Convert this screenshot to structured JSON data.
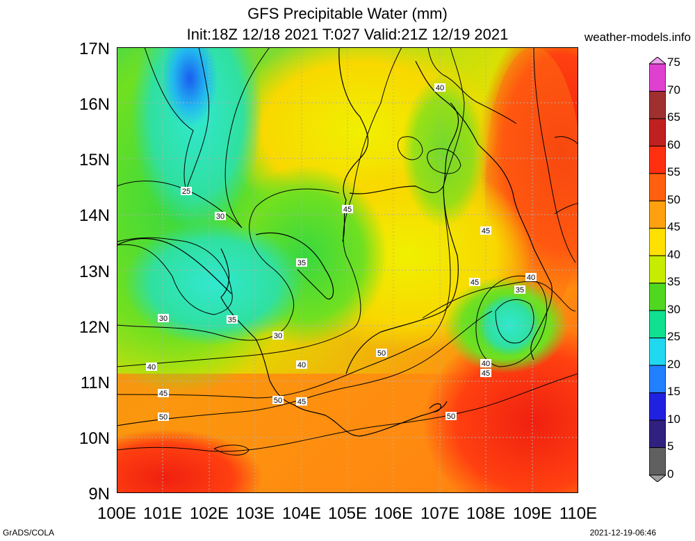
{
  "title_line1": "GFS Precipitable Water (mm)",
  "title_line2": "Init:18Z 12/18 2021 T:027 Valid:21Z 12/19 2021",
  "site": "weather-models.info",
  "footer_left": "GrADS/COLA",
  "footer_right": "2021-12-19-06:46",
  "lat_labels": [
    "17N",
    "16N",
    "15N",
    "14N",
    "13N",
    "12N",
    "11N",
    "10N",
    "9N"
  ],
  "lon_labels": [
    "100E",
    "101E",
    "102E",
    "103E",
    "104E",
    "105E",
    "106E",
    "107E",
    "108E",
    "109E",
    "110E"
  ],
  "colorbar": {
    "labels": [
      "75",
      "70",
      "65",
      "60",
      "55",
      "50",
      "45",
      "40",
      "35",
      "30",
      "25",
      "20",
      "15",
      "10",
      "5",
      "0"
    ],
    "colors": [
      "#f0a0f0",
      "#e040d0",
      "#a03030",
      "#c02020",
      "#ff3010",
      "#ff6010",
      "#ffa010",
      "#ffe000",
      "#c8ec00",
      "#50d820",
      "#10e090",
      "#20d8f0",
      "#2080ff",
      "#2020e0",
      "#302080",
      "#606060",
      "#a0a0a0"
    ]
  },
  "contour_labels": [
    "25",
    "30",
    "35",
    "30",
    "35",
    "30",
    "40",
    "40",
    "45",
    "50",
    "45",
    "50",
    "45",
    "45",
    "50",
    "45",
    "40",
    "35",
    "40",
    "45",
    "40",
    "50"
  ],
  "map": {
    "xrange_lon": [
      100,
      110
    ],
    "yrange_lat": [
      9,
      17
    ],
    "variable": "Precipitable Water (mm)"
  }
}
